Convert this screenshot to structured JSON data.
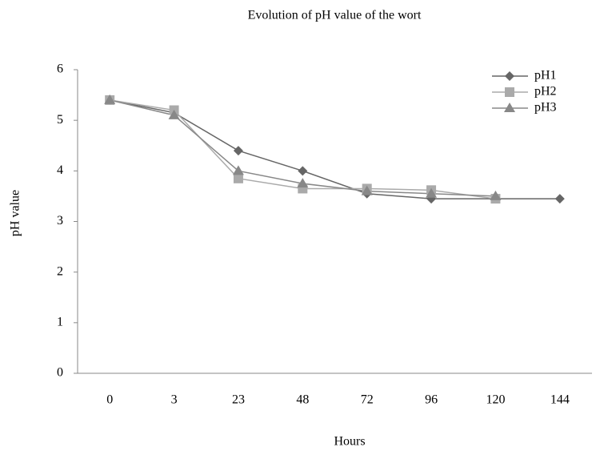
{
  "chart_data": {
    "type": "line",
    "title": "Evolution of pH  value of the wort",
    "x_label": "Hours",
    "y_label": "pH value",
    "categories": [
      "0",
      "3",
      "23",
      "48",
      "72",
      "96",
      "120",
      "144"
    ],
    "series": [
      {
        "name": "pH1",
        "color": "#666666",
        "marker": "diamond",
        "values": [
          5.4,
          5.15,
          4.4,
          4.0,
          3.55,
          3.45,
          3.45,
          3.45
        ]
      },
      {
        "name": "pH2",
        "color": "#aaaaaa",
        "marker": "square",
        "values": [
          5.4,
          5.2,
          3.85,
          3.65,
          3.65,
          3.62,
          3.45,
          null
        ]
      },
      {
        "name": "pH3",
        "color": "#888888",
        "marker": "triangle",
        "values": [
          5.4,
          5.1,
          4.0,
          3.75,
          3.6,
          3.55,
          3.5,
          null
        ]
      }
    ],
    "ylim": [
      0,
      6
    ],
    "yticks": [
      0,
      1,
      2,
      3,
      4,
      5,
      6
    ],
    "legend": "top-right"
  }
}
